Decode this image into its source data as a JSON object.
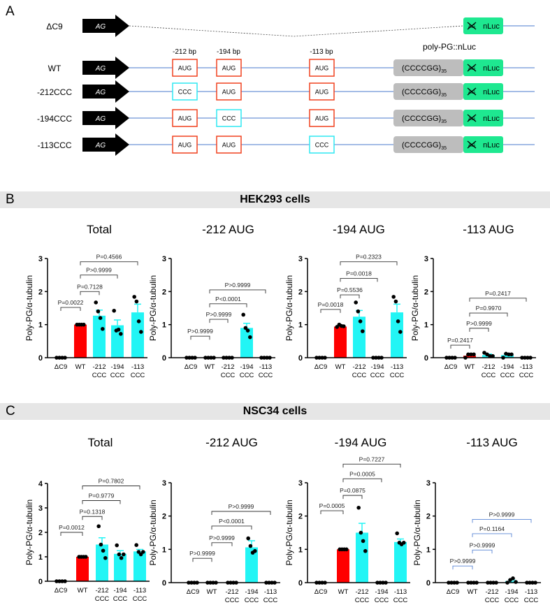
{
  "panel_a": {
    "label": "A",
    "promoter": "AG",
    "reporter": "nLuc",
    "crossed_start": "AG",
    "repeat": "(CCCCGG)",
    "repeat_sub": "35",
    "construct_title": "poly-PG::nLuc",
    "positions": [
      "-212 bp",
      "-194 bp",
      "-113 bp"
    ],
    "rows": [
      {
        "name": "ΔC9",
        "deleted": true
      },
      {
        "name": "WT",
        "codons": [
          "AUG",
          "AUG",
          "AUG"
        ]
      },
      {
        "name": "-212CCC",
        "codons": [
          "CCC",
          "AUG",
          "AUG"
        ]
      },
      {
        "name": "-194CCC",
        "codons": [
          "AUG",
          "CCC",
          "AUG"
        ]
      },
      {
        "name": "-113CCC",
        "codons": [
          "AUG",
          "AUG",
          "CCC"
        ]
      }
    ],
    "colors": {
      "aug": "#f0401e",
      "ccc": "#2ee8f2",
      "repeat": "#bdbdbd",
      "nluc": "#1ee890",
      "line": "#4a78cc"
    }
  },
  "panel_b": {
    "label": "B",
    "title": "HEK293 cells"
  },
  "panel_c": {
    "label": "C",
    "title": "NSC34 cells"
  },
  "colors": {
    "wt": "#ff0000",
    "mutant": "#22f5f5",
    "bracket_default": "#333333",
    "bracket_blue": "#5a86d6"
  },
  "chart_data": [
    {
      "panel": "B",
      "type": "bar",
      "title": "Total",
      "ylabel": "Poly-PG/α-tubulin",
      "ylim": [
        0,
        3
      ],
      "yticks": [
        "0",
        "1",
        "2",
        "3"
      ],
      "categories": [
        [
          "ΔC9",
          ""
        ],
        [
          "WT",
          ""
        ],
        [
          "-212",
          "CCC"
        ],
        [
          "-194",
          "CCC"
        ],
        [
          "-113",
          "CCC"
        ]
      ],
      "means": [
        0,
        1,
        1.27,
        0.98,
        1.37
      ],
      "sem": [
        0,
        0,
        0.17,
        0.16,
        0.25
      ],
      "points": [
        [
          0,
          0,
          0,
          0
        ],
        [
          1,
          1,
          1,
          1
        ],
        [
          1.67,
          1.4,
          1.2,
          0.87
        ],
        [
          1.42,
          0.82,
          0.85,
          0.72
        ],
        [
          1.84,
          1.7,
          1.1,
          0.78
        ]
      ],
      "brackets": [
        {
          "from": 0,
          "to": 1,
          "label": "P=0.0022",
          "y": 1.52
        },
        {
          "from": 1,
          "to": 2,
          "label": "P=0.7128",
          "y": 2.0
        },
        {
          "from": 1,
          "to": 3,
          "label": "P>0.9999",
          "y": 2.5
        },
        {
          "from": 1,
          "to": 4,
          "label": "P=0.4566",
          "y": 2.9
        }
      ]
    },
    {
      "panel": "B",
      "type": "bar",
      "title": "-212 AUG",
      "ylabel": "Poly-PG/α-tubulin",
      "ylim": [
        0,
        3
      ],
      "yticks": [
        "0",
        "1",
        "2",
        "3"
      ],
      "categories": [
        [
          "ΔC9",
          ""
        ],
        [
          "WT",
          ""
        ],
        [
          "-212",
          "CCC"
        ],
        [
          "-194",
          "CCC"
        ],
        [
          "-113",
          "CCC"
        ]
      ],
      "means": [
        0,
        0,
        0,
        0.9,
        0
      ],
      "sem": [
        0,
        0,
        0,
        0.14,
        0
      ],
      "points": [
        [
          0,
          0,
          0,
          0
        ],
        [
          0,
          0,
          0,
          0
        ],
        [
          0,
          0,
          0,
          0
        ],
        [
          1.3,
          0.9,
          0.82,
          0.62
        ],
        [
          0,
          0,
          0,
          0
        ]
      ],
      "brackets": [
        {
          "from": 0,
          "to": 1,
          "label": "P>0.9999",
          "y": 0.65
        },
        {
          "from": 1,
          "to": 2,
          "label": "P>0.9999",
          "y": 1.16
        },
        {
          "from": 1,
          "to": 3,
          "label": "P<0.0001",
          "y": 1.63
        },
        {
          "from": 1,
          "to": 4,
          "label": "P>0.9999",
          "y": 2.05
        }
      ]
    },
    {
      "panel": "B",
      "type": "bar",
      "title": "-194 AUG",
      "ylabel": "Poly-PG/α-tubulin",
      "ylim": [
        0,
        3
      ],
      "yticks": [
        "0",
        "1",
        "2",
        "3"
      ],
      "categories": [
        [
          "ΔC9",
          ""
        ],
        [
          "WT",
          ""
        ],
        [
          "-212",
          "CCC"
        ],
        [
          "-194",
          "CCC"
        ],
        [
          "-113",
          "CCC"
        ]
      ],
      "means": [
        0,
        0.94,
        1.24,
        0,
        1.37
      ],
      "sem": [
        0,
        0,
        0.19,
        0,
        0.25
      ],
      "points": [
        [
          0,
          0,
          0,
          0
        ],
        [
          0.93,
          1.0,
          0.96,
          0.95
        ],
        [
          1.67,
          1.4,
          1.1,
          0.8
        ],
        [
          0,
          0,
          0,
          0
        ],
        [
          1.84,
          1.7,
          1.1,
          0.78
        ]
      ],
      "brackets": [
        {
          "from": 0,
          "to": 1,
          "label": "P=0.0018",
          "y": 1.46
        },
        {
          "from": 1,
          "to": 2,
          "label": "P=0.5536",
          "y": 1.9
        },
        {
          "from": 1,
          "to": 3,
          "label": "P=0.0018",
          "y": 2.4
        },
        {
          "from": 1,
          "to": 4,
          "label": "P=0.2323",
          "y": 2.9
        }
      ]
    },
    {
      "panel": "B",
      "type": "bar",
      "title": "-113 AUG",
      "ylabel": "Poly-PG/α-tubulin",
      "ylim": [
        0,
        3
      ],
      "yticks": [
        "0",
        "1",
        "2",
        "3"
      ],
      "categories": [
        [
          "ΔC9",
          ""
        ],
        [
          "WT",
          ""
        ],
        [
          "-212",
          "CCC"
        ],
        [
          "-194",
          "CCC"
        ],
        [
          "-113",
          "CCC"
        ]
      ],
      "means": [
        0,
        0.06,
        0.08,
        0.08,
        0
      ],
      "sem": [
        0,
        0.02,
        0.03,
        0.03,
        0
      ],
      "points": [
        [
          0,
          0,
          0,
          0
        ],
        [
          0,
          0.1,
          0.1,
          0.1
        ],
        [
          0.15,
          0.1,
          0.05,
          0.05
        ],
        [
          0,
          0.12,
          0.1,
          0.1
        ],
        [
          0,
          0,
          0,
          0
        ]
      ],
      "brackets": [
        {
          "from": 0,
          "to": 1,
          "label": "P=0.2417",
          "y": 0.38
        },
        {
          "from": 1,
          "to": 2,
          "label": "P>0.9999",
          "y": 0.89
        },
        {
          "from": 1,
          "to": 3,
          "label": "P=0.9970",
          "y": 1.35
        },
        {
          "from": 1,
          "to": 4,
          "label": "P=0.2417",
          "y": 1.8
        }
      ]
    },
    {
      "panel": "C",
      "type": "bar",
      "title": "Total",
      "ylabel": "Poly-PG/α-tubulin",
      "ylim": [
        0,
        4
      ],
      "yticks": [
        "0",
        "1",
        "2",
        "3",
        "4"
      ],
      "categories": [
        [
          "ΔC9",
          ""
        ],
        [
          "WT",
          ""
        ],
        [
          "-212",
          "CCC"
        ],
        [
          "-194",
          "CCC"
        ],
        [
          "-113",
          "CCC"
        ]
      ],
      "means": [
        0,
        1,
        1.5,
        1.12,
        1.22
      ],
      "sem": [
        0,
        0,
        0.28,
        0.13,
        0.08
      ],
      "points": [
        [
          0,
          0,
          0,
          0
        ],
        [
          1,
          1,
          1,
          1
        ],
        [
          2.25,
          1.5,
          1.25,
          0.95
        ],
        [
          1.47,
          1.1,
          0.95,
          1.1
        ],
        [
          1.48,
          1.2,
          1.1,
          1.2
        ]
      ],
      "brackets": [
        {
          "from": 0,
          "to": 1,
          "label": "P=0.0012",
          "y": 2.0
        },
        {
          "from": 1,
          "to": 2,
          "label": "P=0.1318",
          "y": 2.65
        },
        {
          "from": 1,
          "to": 3,
          "label": "P=0.9779",
          "y": 3.3
        },
        {
          "from": 1,
          "to": 4,
          "label": "P=0.7802",
          "y": 3.9
        }
      ]
    },
    {
      "panel": "C",
      "type": "bar",
      "title": "-212 AUG",
      "ylabel": "Poly-PG/α-tubulin",
      "ylim": [
        0,
        3
      ],
      "yticks": [
        "0",
        "1",
        "2",
        "3"
      ],
      "categories": [
        [
          "ΔC9",
          ""
        ],
        [
          "WT",
          ""
        ],
        [
          "-212",
          "CCC"
        ],
        [
          "-194",
          "CCC"
        ],
        [
          "-113",
          "CCC"
        ]
      ],
      "means": [
        0,
        0,
        0,
        1.06,
        0
      ],
      "sem": [
        0,
        0,
        0,
        0.2,
        0
      ],
      "points": [
        [
          0,
          0,
          0,
          0
        ],
        [
          0,
          0,
          0,
          0
        ],
        [
          0,
          0,
          0,
          0
        ],
        [
          1.33,
          1.1,
          0.9,
          0.95
        ],
        [
          0,
          0,
          0,
          0
        ]
      ],
      "brackets": [
        {
          "from": 0,
          "to": 1,
          "label": "P>0.9999",
          "y": 0.73
        },
        {
          "from": 1,
          "to": 2,
          "label": "P>0.9999",
          "y": 1.2
        },
        {
          "from": 1,
          "to": 3,
          "label": "P<0.0001",
          "y": 1.7
        },
        {
          "from": 1,
          "to": 4,
          "label": "P>0.9999",
          "y": 2.14
        }
      ]
    },
    {
      "panel": "C",
      "type": "bar",
      "title": "-194 AUG",
      "ylabel": "Poly-PG/α-tubulin",
      "ylim": [
        0,
        3
      ],
      "yticks": [
        "0",
        "1",
        "2",
        "3"
      ],
      "categories": [
        [
          "ΔC9",
          ""
        ],
        [
          "WT",
          ""
        ],
        [
          "-212",
          "CCC"
        ],
        [
          "-194",
          "CCC"
        ],
        [
          "-113",
          "CCC"
        ]
      ],
      "means": [
        0,
        1,
        1.5,
        0,
        1.22
      ],
      "sem": [
        0,
        0,
        0.28,
        0,
        0.09
      ],
      "points": [
        [
          0,
          0,
          0,
          0
        ],
        [
          1,
          1,
          1,
          1
        ],
        [
          2.25,
          1.5,
          1.25,
          0.95
        ],
        [
          0,
          0,
          0,
          0
        ],
        [
          1.48,
          1.2,
          1.15,
          1.2
        ]
      ],
      "brackets": [
        {
          "from": 0,
          "to": 1,
          "label": "P=0.0005",
          "y": 2.16
        },
        {
          "from": 1,
          "to": 2,
          "label": "P=0.0875",
          "y": 2.62
        },
        {
          "from": 1,
          "to": 3,
          "label": "P=0.0005",
          "y": 3.12
        },
        {
          "from": 1,
          "to": 4,
          "label": "P=0.7227",
          "y": 3.56
        }
      ]
    },
    {
      "panel": "C",
      "type": "bar",
      "title": "-113 AUG",
      "ylabel": "Poly-PG/α-tubulin",
      "ylim": [
        0,
        3
      ],
      "yticks": [
        "0",
        "1",
        "2",
        "3"
      ],
      "bracket_color": "blue",
      "categories": [
        [
          "ΔC9",
          ""
        ],
        [
          "WT",
          ""
        ],
        [
          "-212",
          "CCC"
        ],
        [
          "-194",
          "CCC"
        ],
        [
          "-113",
          "CCC"
        ]
      ],
      "means": [
        0,
        0,
        0,
        0.05,
        0
      ],
      "sem": [
        0,
        0,
        0,
        0.03,
        0
      ],
      "points": [
        [
          0,
          0,
          0,
          0
        ],
        [
          0,
          0,
          0,
          0
        ],
        [
          0,
          0,
          0,
          0
        ],
        [
          0,
          0.08,
          0.13,
          0.02
        ],
        [
          0,
          0,
          0,
          0
        ]
      ],
      "brackets": [
        {
          "from": 0,
          "to": 1,
          "label": "P>0.9999",
          "y": 0.5
        },
        {
          "from": 1,
          "to": 2,
          "label": "P>0.9999",
          "y": 0.98
        },
        {
          "from": 1,
          "to": 3,
          "label": "P=0.1164",
          "y": 1.47
        },
        {
          "from": 1,
          "to": 4,
          "label": "P>0.9999",
          "y": 1.9
        }
      ]
    }
  ]
}
